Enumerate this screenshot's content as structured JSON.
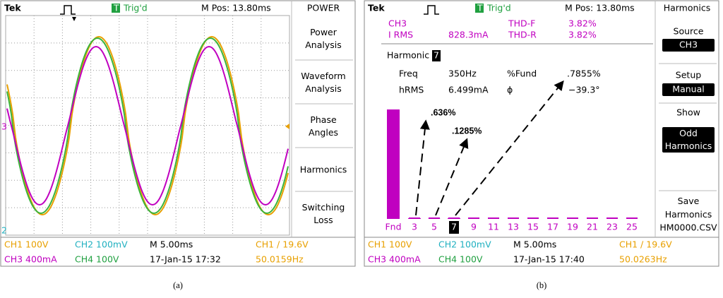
{
  "panels": [
    {
      "caption": "(a)",
      "header": {
        "brand": "Tek",
        "trigger_icon": "T",
        "trigger": "Trig'd",
        "position": "M Pos: 13.80ms",
        "menu_title": "POWER"
      },
      "channel_markers": [
        "3",
        "2"
      ],
      "menu": [
        "Power Analysis",
        "Waveform Analysis",
        "Phase Angles",
        "Harmonics",
        "Switching Loss"
      ],
      "footer": [
        [
          "CH1  100V",
          "CH2  100mV",
          "M 5.00ms",
          "CH1 ∕ 19.6V"
        ],
        [
          "CH3  400mA",
          "CH4  100V",
          "17-Jan-15 17:32",
          "50.0159Hz"
        ]
      ]
    },
    {
      "caption": "(b)",
      "header": {
        "brand": "Tek",
        "trigger_icon": "T",
        "trigger": "Trig'd",
        "position": "M Pos: 13.80ms",
        "menu_title": "Harmonics"
      },
      "info": {
        "channel": "CH3",
        "irms_label": "I RMS",
        "irms": "828.3mA",
        "thdf_label": "THD-F",
        "thdf": "3.82%",
        "thdr_label": "THD-R",
        "thdr": "3.82%",
        "harmonic_label": "Harmonic",
        "harmonic": "7",
        "freq_label": "Freq",
        "freq": "350Hz",
        "fund_label": "%Fund",
        "fund": ".7855%",
        "hrms_label": "hRMS",
        "hrms": "6.499mA",
        "phase_label": "ϕ",
        "phase": "−39.3°"
      },
      "chart_data": {
        "type": "bar",
        "categories": [
          "Fnd",
          "3",
          "5",
          "7",
          "9",
          "11",
          "13",
          "15",
          "17",
          "19",
          "21",
          "23",
          "25"
        ],
        "values": [
          100,
          0.636,
          0.1285,
          0.7855,
          0,
          0,
          0,
          0,
          0,
          0,
          0,
          0,
          0
        ],
        "value_labels": [
          null,
          ".636%",
          ".1285%",
          null,
          null,
          null,
          null,
          null,
          null,
          null,
          null,
          null,
          null
        ],
        "color": "#c000c0"
      },
      "menu": [
        {
          "label": "Source",
          "value": "CH3"
        },
        {
          "label": "Setup",
          "value": "Manual"
        },
        {
          "label": "Show",
          "value": "Odd Harmonics"
        },
        {
          "label": "Save Harmonics",
          "value": "HM0000.CSV"
        }
      ],
      "footer": [
        [
          "CH1  100V",
          "CH2  100mV",
          "M 5.00ms",
          "CH1 ∕ 19.6V"
        ],
        [
          "CH3  400mA",
          "CH4  100V",
          "17-Jan-15 17:40",
          "50.0263Hz"
        ]
      ]
    }
  ]
}
